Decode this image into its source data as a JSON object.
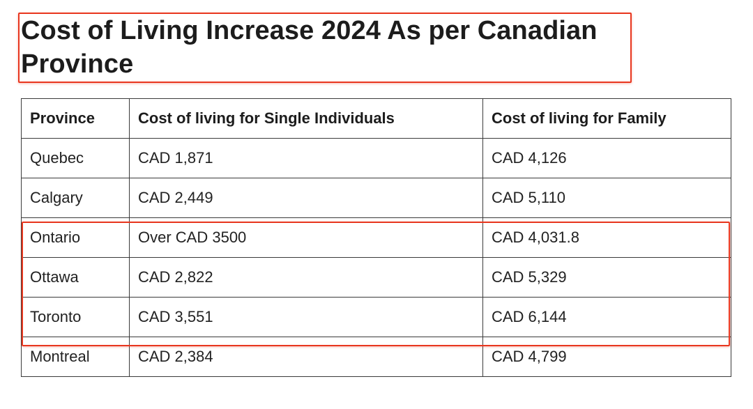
{
  "page": {
    "title": "Cost of Living Increase 2024 As per Canadian Province"
  },
  "table": {
    "headers": [
      "Province",
      "Cost of living for Single Individuals",
      "Cost of living for Family"
    ],
    "rows": [
      [
        "Quebec",
        "CAD 1,871",
        "CAD 4,126"
      ],
      [
        "Calgary",
        "CAD 2,449",
        "CAD 5,110"
      ],
      [
        "Ontario",
        "Over CAD 3500",
        "CAD 4,031.8"
      ],
      [
        "Ottawa",
        "CAD 2,822",
        "CAD 5,329"
      ],
      [
        "Toronto",
        "CAD 3,551",
        "CAD 6,144"
      ],
      [
        "Montreal",
        "CAD 2,384",
        "CAD 4,799"
      ]
    ]
  },
  "colors": {
    "highlight": "#e8371f",
    "text": "#1c1c1c",
    "border": "#3a3a3a"
  }
}
